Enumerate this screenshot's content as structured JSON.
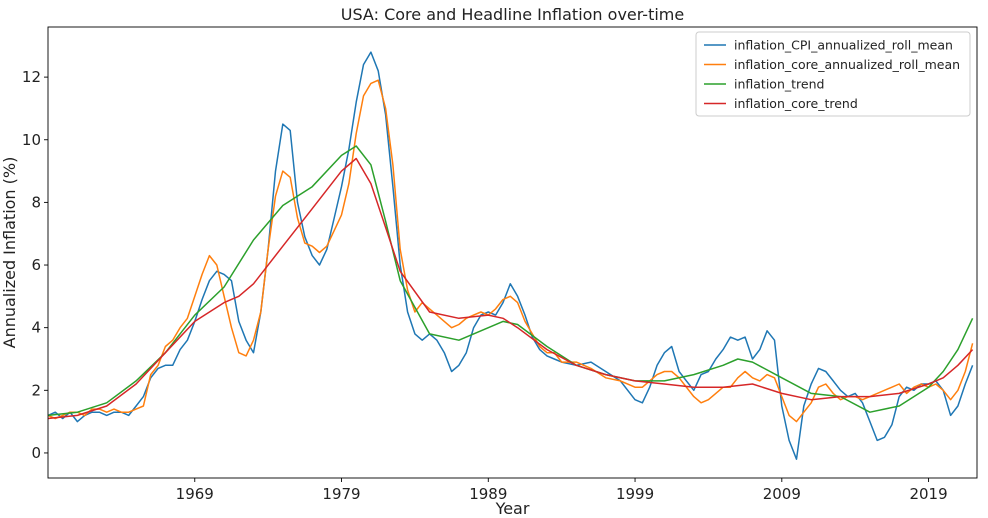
{
  "chart_data": {
    "type": "line",
    "title": "USA: Core and Headline Inflation over-time",
    "xlabel": "Year",
    "ylabel": "Annualized Inflation (%)",
    "xlim": [
      1959.0,
      2022.3
    ],
    "ylim": [
      -0.8,
      13.6
    ],
    "x_ticks": [
      1969,
      1979,
      1989,
      1999,
      2009,
      2019
    ],
    "y_ticks": [
      0,
      2,
      4,
      6,
      8,
      10,
      12
    ],
    "grid": false,
    "legend_position": "top-right",
    "series": [
      {
        "name": "inflation_CPI_annualized_roll_mean",
        "color": "#1f77b4",
        "x": [
          1959.0,
          1959.5,
          1960.0,
          1960.5,
          1961.0,
          1961.5,
          1962.0,
          1962.5,
          1963.0,
          1963.5,
          1964.0,
          1964.5,
          1965.0,
          1965.5,
          1966.0,
          1966.5,
          1967.0,
          1967.5,
          1968.0,
          1968.5,
          1969.0,
          1969.5,
          1970.0,
          1970.5,
          1971.0,
          1971.5,
          1972.0,
          1972.5,
          1973.0,
          1973.5,
          1974.0,
          1974.5,
          1975.0,
          1975.5,
          1976.0,
          1976.5,
          1977.0,
          1977.5,
          1978.0,
          1978.5,
          1979.0,
          1979.5,
          1980.0,
          1980.5,
          1981.0,
          1981.5,
          1982.0,
          1982.5,
          1983.0,
          1983.5,
          1984.0,
          1984.5,
          1985.0,
          1985.5,
          1986.0,
          1986.5,
          1987.0,
          1987.5,
          1988.0,
          1988.5,
          1989.0,
          1989.5,
          1990.0,
          1990.5,
          1991.0,
          1991.5,
          1992.0,
          1992.5,
          1993.0,
          1993.5,
          1994.0,
          1995.0,
          1996.0,
          1997.0,
          1998.0,
          1999.0,
          1999.5,
          2000.0,
          2000.5,
          2001.0,
          2001.5,
          2002.0,
          2002.5,
          2003.0,
          2003.5,
          2004.0,
          2004.5,
          2005.0,
          2005.5,
          2006.0,
          2006.5,
          2007.0,
          2007.5,
          2008.0,
          2008.5,
          2009.0,
          2009.5,
          2010.0,
          2010.5,
          2011.0,
          2011.5,
          2012.0,
          2012.5,
          2013.0,
          2013.5,
          2014.0,
          2014.5,
          2015.0,
          2015.5,
          2016.0,
          2016.5,
          2017.0,
          2017.5,
          2018.0,
          2018.5,
          2019.0,
          2019.5,
          2020.0,
          2020.5,
          2021.0,
          2021.5,
          2022.0
        ],
        "y": [
          1.2,
          1.3,
          1.1,
          1.3,
          1.0,
          1.2,
          1.3,
          1.3,
          1.2,
          1.3,
          1.3,
          1.2,
          1.5,
          1.8,
          2.4,
          2.7,
          2.8,
          2.8,
          3.3,
          3.6,
          4.2,
          4.9,
          5.5,
          5.8,
          5.7,
          5.5,
          4.2,
          3.6,
          3.2,
          4.5,
          6.5,
          9.0,
          10.5,
          10.3,
          8.0,
          6.9,
          6.3,
          6.0,
          6.5,
          7.5,
          8.5,
          9.7,
          11.2,
          12.4,
          12.8,
          12.2,
          10.8,
          8.5,
          6.0,
          4.5,
          3.8,
          3.6,
          3.8,
          3.6,
          3.2,
          2.6,
          2.8,
          3.2,
          4.0,
          4.4,
          4.5,
          4.4,
          4.8,
          5.4,
          5.0,
          4.4,
          3.7,
          3.3,
          3.1,
          3.0,
          2.9,
          2.8,
          2.9,
          2.6,
          2.3,
          1.7,
          1.6,
          2.1,
          2.8,
          3.2,
          3.4,
          2.6,
          2.3,
          2.0,
          2.5,
          2.6,
          3.0,
          3.3,
          3.7,
          3.6,
          3.7,
          3.0,
          3.3,
          3.9,
          3.6,
          1.5,
          0.4,
          -0.2,
          1.5,
          2.2,
          2.7,
          2.6,
          2.3,
          2.0,
          1.8,
          1.9,
          1.6,
          1.0,
          0.4,
          0.5,
          0.9,
          1.8,
          2.1,
          2.0,
          2.2,
          2.2,
          2.3,
          2.0,
          1.2,
          1.5,
          2.2,
          2.8
        ]
      },
      {
        "name": "inflation_core_annualized_roll_mean",
        "color": "#ff7f0e",
        "x": [
          1959.0,
          1959.5,
          1960.0,
          1960.5,
          1961.0,
          1961.5,
          1962.0,
          1962.5,
          1963.0,
          1963.5,
          1964.0,
          1964.5,
          1965.0,
          1965.5,
          1966.0,
          1966.5,
          1967.0,
          1967.5,
          1968.0,
          1968.5,
          1969.0,
          1969.5,
          1970.0,
          1970.5,
          1971.0,
          1971.5,
          1972.0,
          1972.5,
          1973.0,
          1973.5,
          1974.0,
          1974.5,
          1975.0,
          1975.5,
          1976.0,
          1976.5,
          1977.0,
          1977.5,
          1978.0,
          1978.5,
          1979.0,
          1979.5,
          1980.0,
          1980.5,
          1981.0,
          1981.5,
          1982.0,
          1982.5,
          1983.0,
          1983.5,
          1984.0,
          1984.5,
          1985.0,
          1985.5,
          1986.0,
          1986.5,
          1987.0,
          1987.5,
          1988.0,
          1988.5,
          1989.0,
          1989.5,
          1990.0,
          1990.5,
          1991.0,
          1991.5,
          1992.0,
          1992.5,
          1993.0,
          1993.5,
          1994.0,
          1995.0,
          1996.0,
          1997.0,
          1998.0,
          1999.0,
          1999.5,
          2000.0,
          2000.5,
          2001.0,
          2001.5,
          2002.0,
          2002.5,
          2003.0,
          2003.5,
          2004.0,
          2004.5,
          2005.0,
          2005.5,
          2006.0,
          2006.5,
          2007.0,
          2007.5,
          2008.0,
          2008.5,
          2009.0,
          2009.5,
          2010.0,
          2010.5,
          2011.0,
          2011.5,
          2012.0,
          2012.5,
          2013.0,
          2013.5,
          2014.0,
          2014.5,
          2015.0,
          2015.5,
          2016.0,
          2016.5,
          2017.0,
          2017.5,
          2018.0,
          2018.5,
          2019.0,
          2019.5,
          2020.0,
          2020.5,
          2021.0,
          2021.5,
          2022.0
        ],
        "y": [
          1.2,
          1.1,
          1.2,
          1.3,
          1.3,
          1.2,
          1.4,
          1.4,
          1.3,
          1.4,
          1.3,
          1.3,
          1.4,
          1.5,
          2.5,
          2.8,
          3.4,
          3.6,
          4.0,
          4.3,
          5.0,
          5.7,
          6.3,
          6.0,
          5.0,
          4.0,
          3.2,
          3.1,
          3.6,
          4.5,
          6.5,
          8.2,
          9.0,
          8.8,
          7.5,
          6.7,
          6.6,
          6.4,
          6.6,
          7.1,
          7.6,
          8.6,
          10.2,
          11.4,
          11.8,
          11.9,
          11.0,
          9.2,
          6.5,
          5.2,
          4.5,
          4.8,
          4.6,
          4.4,
          4.2,
          4.0,
          4.1,
          4.3,
          4.4,
          4.5,
          4.4,
          4.6,
          4.9,
          5.0,
          4.8,
          4.2,
          3.8,
          3.4,
          3.2,
          3.2,
          2.9,
          2.9,
          2.7,
          2.4,
          2.3,
          2.1,
          2.1,
          2.3,
          2.5,
          2.6,
          2.6,
          2.4,
          2.1,
          1.8,
          1.6,
          1.7,
          1.9,
          2.1,
          2.1,
          2.4,
          2.6,
          2.4,
          2.3,
          2.5,
          2.4,
          1.8,
          1.2,
          1.0,
          1.3,
          1.6,
          2.1,
          2.2,
          1.9,
          1.7,
          1.8,
          1.8,
          1.7,
          1.8,
          1.9,
          2.0,
          2.1,
          2.2,
          1.9,
          2.1,
          2.2,
          2.1,
          2.2,
          2.0,
          1.7,
          2.0,
          2.6,
          3.5
        ]
      },
      {
        "name": "inflation_trend",
        "color": "#2ca02c",
        "x": [
          1959.0,
          1961.0,
          1963.0,
          1965.0,
          1967.0,
          1969.0,
          1971.0,
          1973.0,
          1975.0,
          1977.0,
          1979.0,
          1980.0,
          1981.0,
          1982.0,
          1983.0,
          1985.0,
          1987.0,
          1989.0,
          1990.0,
          1991.0,
          1993.0,
          1995.0,
          1997.0,
          1999.0,
          2001.0,
          2003.0,
          2005.0,
          2006.0,
          2007.0,
          2009.0,
          2011.0,
          2013.0,
          2015.0,
          2017.0,
          2019.0,
          2020.0,
          2021.0,
          2022.0
        ],
        "y": [
          1.2,
          1.3,
          1.6,
          2.3,
          3.2,
          4.4,
          5.3,
          6.8,
          7.9,
          8.5,
          9.5,
          9.8,
          9.2,
          7.4,
          5.5,
          3.8,
          3.6,
          4.0,
          4.2,
          4.1,
          3.4,
          2.8,
          2.5,
          2.3,
          2.3,
          2.5,
          2.8,
          3.0,
          2.9,
          2.4,
          1.9,
          1.8,
          1.3,
          1.5,
          2.1,
          2.6,
          3.3,
          4.3
        ]
      },
      {
        "name": "inflation_core_trend",
        "color": "#d62728",
        "x": [
          1959.0,
          1961.0,
          1963.0,
          1965.0,
          1967.0,
          1969.0,
          1971.0,
          1972.0,
          1973.0,
          1975.0,
          1977.0,
          1979.0,
          1980.0,
          1981.0,
          1982.0,
          1983.0,
          1985.0,
          1987.0,
          1989.0,
          1990.0,
          1991.0,
          1993.0,
          1995.0,
          1997.0,
          1999.0,
          2001.0,
          2003.0,
          2005.0,
          2007.0,
          2009.0,
          2011.0,
          2013.0,
          2015.0,
          2017.0,
          2019.0,
          2020.0,
          2021.0,
          2022.0
        ],
        "y": [
          1.1,
          1.2,
          1.5,
          2.2,
          3.2,
          4.2,
          4.8,
          5.0,
          5.4,
          6.6,
          7.8,
          9.0,
          9.4,
          8.6,
          7.2,
          5.8,
          4.5,
          4.3,
          4.4,
          4.3,
          4.0,
          3.3,
          2.8,
          2.5,
          2.3,
          2.2,
          2.1,
          2.1,
          2.2,
          1.9,
          1.7,
          1.8,
          1.8,
          1.9,
          2.2,
          2.4,
          2.8,
          3.3
        ]
      }
    ]
  }
}
